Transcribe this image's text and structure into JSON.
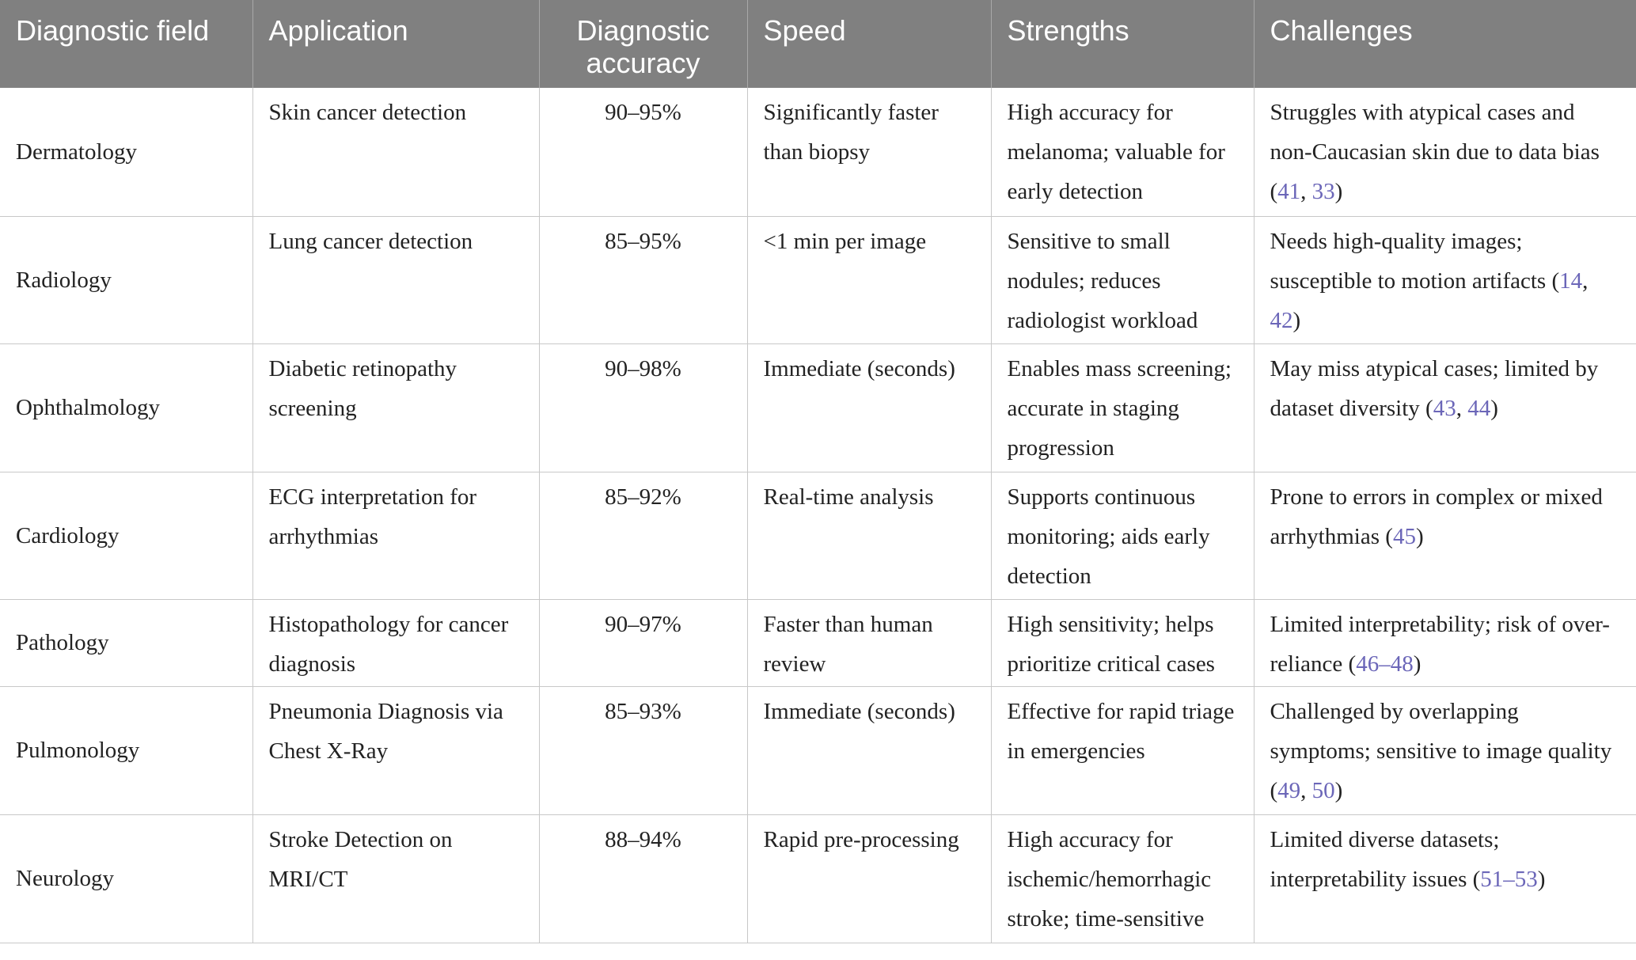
{
  "table": {
    "columns": [
      "Diagnostic field",
      "Application",
      "Diagnostic accuracy",
      "Speed",
      "Strengths",
      "Challenges"
    ],
    "rows": [
      {
        "field": "Dermatology",
        "application": "Skin cancer detection",
        "accuracy": "90–95%",
        "speed": "Significantly faster than biopsy",
        "strengths": "High accuracy for melanoma; valuable for early detection",
        "challenges_text": "Struggles with atypical cases and non-Caucasian skin due to data bias",
        "refs": [
          "41",
          "33"
        ],
        "refs_sep": ", "
      },
      {
        "field": "Radiology",
        "application": "Lung cancer detection",
        "accuracy": "85–95%",
        "speed": "<1 min per image",
        "strengths": "Sensitive to small nodules; reduces radiologist workload",
        "challenges_text": "Needs high-quality images; susceptible to motion artifacts",
        "refs": [
          "14",
          "42"
        ],
        "refs_sep": ", "
      },
      {
        "field": "Ophthalmology",
        "application": "Diabetic retinopathy screening",
        "accuracy": "90–98%",
        "speed": "Immediate (seconds)",
        "strengths": "Enables mass screening; accurate in staging progression",
        "challenges_text": "May miss atypical cases; limited by dataset diversity",
        "refs": [
          "43",
          "44"
        ],
        "refs_sep": ", "
      },
      {
        "field": "Cardiology",
        "application": "ECG interpretation for arrhythmias",
        "accuracy": "85–92%",
        "speed": "Real-time analysis",
        "strengths": "Supports continuous monitoring; aids early detection",
        "challenges_text": "Prone to errors in complex or mixed arrhythmias",
        "refs": [
          "45"
        ],
        "refs_sep": ""
      },
      {
        "field": "Pathology",
        "application": "Histopathology for cancer diagnosis",
        "accuracy": "90–97%",
        "speed": "Faster than human review",
        "strengths": "High sensitivity; helps prioritize critical cases",
        "challenges_text": "Limited interpretability; risk of over-reliance",
        "refs": [
          "46",
          "48"
        ],
        "refs_sep": "–"
      },
      {
        "field": "Pulmonology",
        "application": "Pneumonia Diagnosis via Chest X-Ray",
        "accuracy": "85–93%",
        "speed": "Immediate (seconds)",
        "strengths": "Effective for rapid triage in emergencies",
        "challenges_text": "Challenged by overlapping symptoms; sensitive to image quality",
        "refs": [
          "49",
          "50"
        ],
        "refs_sep": ", "
      },
      {
        "field": "Neurology",
        "application": "Stroke Detection on MRI/CT",
        "accuracy": "88–94%",
        "speed": "Rapid pre-processing",
        "strengths": "High accuracy for ischemic/hemorrhagic stroke; time-sensitive",
        "challenges_text": "Limited diverse datasets; interpretability issues",
        "refs": [
          "51",
          "53"
        ],
        "refs_sep": "–"
      }
    ]
  },
  "colors": {
    "header_bg": "#808080",
    "header_text": "#ffffff",
    "body_text": "#222222",
    "ref_link": "#6b66b8",
    "rule": "#c8c8c8"
  }
}
